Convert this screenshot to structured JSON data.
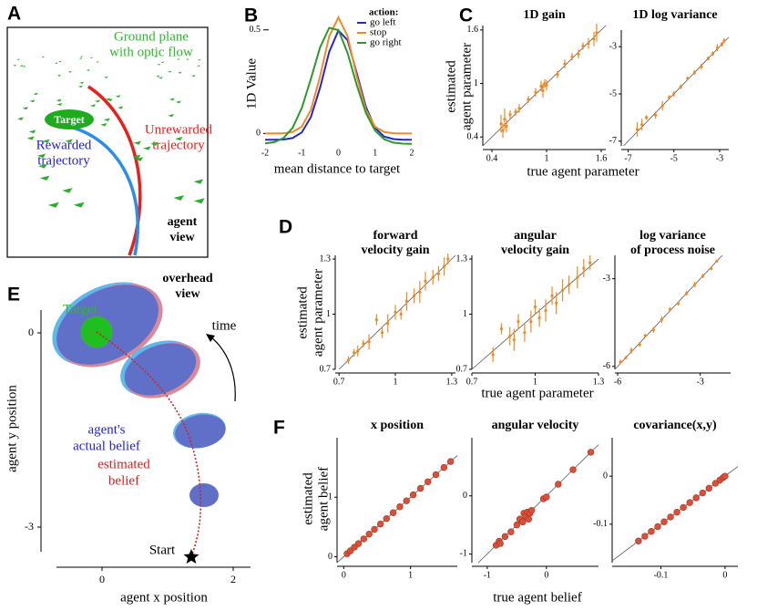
{
  "panel_labels": [
    "A",
    "B",
    "C",
    "D",
    "E",
    "F"
  ],
  "panel_a": {
    "ground": [
      "Ground plane",
      "with optic flow"
    ],
    "target": "Target",
    "rewarded": [
      "Rewarded",
      "trajectory"
    ],
    "unrewarded": [
      "Unrewarded",
      "trajectory"
    ],
    "view": [
      "agent",
      "view"
    ]
  },
  "panel_c": {
    "ylabel": [
      "estimated",
      "agent parameter"
    ],
    "xlabel": "true agent parameter"
  },
  "panel_d": {
    "ylabel": [
      "estimated",
      "agent parameter"
    ],
    "xlabel": "true agent parameter"
  },
  "panel_e": {
    "view": [
      "overhead",
      "view"
    ],
    "target": "Target",
    "time": "time",
    "actual": [
      "agent's",
      "actual belief"
    ],
    "estimated": [
      "estimated",
      "belief"
    ],
    "start": "Start",
    "xlabel": "agent x position",
    "ylabel": "agent y position",
    "xticks": [
      0,
      2
    ],
    "yticks": [
      0,
      -3
    ]
  },
  "panel_f": {
    "ylabel": [
      "estimated",
      "agent belief"
    ],
    "xlabel": "true agent belief"
  },
  "chart_data": [
    {
      "type": "line",
      "ylabel": "1D Value",
      "xlabel": "mean distance to target",
      "legend_title": "action:",
      "legend": "upper right",
      "x": [
        -2,
        -1.75,
        -1.5,
        -1.25,
        -1,
        -0.75,
        -0.5,
        -0.25,
        0,
        0.25,
        0.5,
        0.75,
        1,
        1.25,
        1.5,
        1.75,
        2
      ],
      "series": [
        {
          "name": "go left",
          "color": "#2525d0",
          "values": [
            -0.03,
            -0.03,
            -0.029,
            -0.022,
            0.005,
            0.079,
            0.221,
            0.394,
            0.497,
            0.45,
            0.291,
            0.128,
            0.027,
            -0.015,
            -0.027,
            -0.03,
            -0.03
          ]
        },
        {
          "name": "stop",
          "color": "#f08a24",
          "values": [
            0,
            0,
            0.001,
            0.007,
            0.033,
            0.114,
            0.276,
            0.469,
            0.56,
            0.469,
            0.276,
            0.114,
            0.033,
            0.007,
            0.001,
            0,
            0
          ]
        },
        {
          "name": "go right",
          "color": "#2a9a2a",
          "values": [
            -0.048,
            -0.042,
            -0.022,
            0.027,
            0.123,
            0.264,
            0.416,
            0.51,
            0.499,
            0.388,
            0.234,
            0.099,
            0.014,
            -0.028,
            -0.044,
            -0.049,
            -0.05
          ]
        }
      ],
      "xlim": [
        -2.1,
        2.1
      ],
      "ylim": [
        -0.06,
        0.6
      ],
      "xticks": [
        -2,
        -1,
        0,
        1,
        2
      ],
      "yticks": [
        0,
        0.5
      ]
    },
    {
      "type": "scatter",
      "title": [
        "1D gain"
      ],
      "color": "#f08a24",
      "x": [
        0.5,
        0.52,
        0.54,
        0.56,
        0.6,
        0.66,
        0.7,
        0.8,
        0.88,
        0.94,
        0.96,
        0.98,
        1.0,
        1.12,
        1.2,
        1.28,
        1.35,
        1.4,
        1.46,
        1.52,
        1.55
      ],
      "values": [
        0.55,
        0.47,
        0.6,
        0.52,
        0.65,
        0.68,
        0.72,
        0.82,
        0.9,
        0.97,
        0.92,
        1.0,
        0.98,
        1.1,
        1.22,
        1.3,
        1.33,
        1.42,
        1.45,
        1.5,
        1.57
      ],
      "errors": [
        0.1,
        0.08,
        0.12,
        0.07,
        0.05,
        0.04,
        0.05,
        0.04,
        0.05,
        0.06,
        0.08,
        0.05,
        0.06,
        0.04,
        0.05,
        0.04,
        0.05,
        0.04,
        0.06,
        0.08,
        0.1
      ],
      "xlim": [
        0.3,
        1.65
      ],
      "ylim": [
        0.3,
        1.65
      ],
      "xticks": [
        0.4,
        1,
        1.6
      ],
      "yticks": [
        0.4,
        1,
        1.6
      ]
    },
    {
      "type": "scatter",
      "title": [
        "1D log variance"
      ],
      "color": "#f08a24",
      "x": [
        -6.6,
        -6.4,
        -6.2,
        -5.8,
        -5.5,
        -5.2,
        -5.0,
        -4.7,
        -4.4,
        -4.1,
        -3.8,
        -3.5,
        -3.3,
        -3.1,
        -2.9,
        -2.8
      ],
      "values": [
        -6.5,
        -6.3,
        -6.0,
        -5.9,
        -5.5,
        -5.15,
        -5.0,
        -4.7,
        -4.35,
        -4.1,
        -3.85,
        -3.5,
        -3.3,
        -3.05,
        -2.9,
        -2.75
      ],
      "errors": [
        0.3,
        0.25,
        0.1,
        0.15,
        0.2,
        0.1,
        0.12,
        0.1,
        0.08,
        0.1,
        0.12,
        0.08,
        0.1,
        0.15,
        0.1,
        0.1
      ],
      "xlim": [
        -7.3,
        -2.6
      ],
      "ylim": [
        -7.2,
        -2.3
      ],
      "xticks": [
        -7,
        -5,
        -3
      ],
      "yticks": [
        -7,
        -5,
        -3
      ]
    },
    {
      "type": "scatter",
      "title": [
        "forward",
        "velocity gain"
      ],
      "color": "#f08a24",
      "x": [
        0.75,
        0.78,
        0.8,
        0.83,
        0.86,
        0.9,
        0.93,
        0.96,
        1.0,
        1.03,
        1.06,
        1.1,
        1.13,
        1.16,
        1.2,
        1.23,
        1.26,
        1.28
      ],
      "values": [
        0.75,
        0.79,
        0.8,
        0.84,
        0.85,
        0.97,
        0.9,
        0.95,
        1.01,
        1.0,
        1.07,
        1.1,
        1.12,
        1.18,
        1.2,
        1.22,
        1.26,
        1.3
      ],
      "errors": [
        0.02,
        0.02,
        0.03,
        0.02,
        0.04,
        0.03,
        0.03,
        0.05,
        0.04,
        0.03,
        0.05,
        0.04,
        0.06,
        0.05,
        0.04,
        0.04,
        0.05,
        0.03
      ],
      "xlim": [
        0.68,
        1.32
      ],
      "ylim": [
        0.7,
        1.32
      ],
      "xticks": [
        0.7,
        1,
        1.3
      ],
      "yticks": [
        0.7,
        1,
        1.3
      ]
    },
    {
      "type": "scatter",
      "title": [
        "angular",
        "velocity gain"
      ],
      "color": "#f08a24",
      "x": [
        0.8,
        0.84,
        0.88,
        0.9,
        0.92,
        0.95,
        0.98,
        1.0,
        1.02,
        1.05,
        1.08,
        1.1,
        1.13,
        1.16,
        1.2,
        1.23,
        1.26
      ],
      "values": [
        0.78,
        0.92,
        0.88,
        0.86,
        0.96,
        0.9,
        0.96,
        1.04,
        0.98,
        1.02,
        1.1,
        1.06,
        1.13,
        1.16,
        1.2,
        1.25,
        1.28
      ],
      "errors": [
        0.04,
        0.03,
        0.05,
        0.06,
        0.04,
        0.05,
        0.06,
        0.04,
        0.05,
        0.06,
        0.05,
        0.06,
        0.06,
        0.05,
        0.06,
        0.05,
        0.04
      ],
      "xlim": [
        0.7,
        1.3
      ],
      "ylim": [
        0.7,
        1.32
      ],
      "xticks": [
        0.7,
        1,
        1.3
      ],
      "yticks": [
        0.7,
        1,
        1.3
      ]
    },
    {
      "type": "scatter",
      "title": [
        "log variance",
        "of process noise"
      ],
      "color": "#f08a24",
      "x": [
        -5.9,
        -5.7,
        -5.5,
        -5.2,
        -5.0,
        -4.7,
        -4.4,
        -4.1,
        -3.8,
        -3.5,
        -3.2,
        -2.9,
        -2.6,
        -2.4
      ],
      "values": [
        -5.85,
        -5.7,
        -5.45,
        -5.25,
        -4.95,
        -4.75,
        -4.4,
        -4.05,
        -3.85,
        -3.5,
        -3.2,
        -2.9,
        -2.65,
        -2.4
      ],
      "errors": [
        0.08,
        0.06,
        0.1,
        0.08,
        0.06,
        0.1,
        0.12,
        0.08,
        0.06,
        0.08,
        0.1,
        0.08,
        0.06,
        0.05
      ],
      "xlim": [
        -6.1,
        -1.9
      ],
      "ylim": [
        -6.1,
        -2.2
      ],
      "xticks": [
        -6,
        -3
      ],
      "yticks": [
        -6,
        -3
      ]
    },
    {
      "type": "scatter",
      "title": [
        "x position"
      ],
      "color": "#d9503a",
      "x": [
        0.05,
        0.1,
        0.16,
        0.22,
        0.3,
        0.38,
        0.46,
        0.55,
        0.64,
        0.74,
        0.84,
        0.94,
        1.04,
        1.15,
        1.26,
        1.38,
        1.5,
        1.6
      ],
      "values": [
        0.05,
        0.1,
        0.16,
        0.22,
        0.3,
        0.38,
        0.46,
        0.55,
        0.64,
        0.74,
        0.84,
        0.94,
        1.04,
        1.15,
        1.26,
        1.38,
        1.5,
        1.6
      ],
      "xlim": [
        -0.1,
        1.7
      ],
      "ylim": [
        -0.1,
        2.0
      ],
      "xticks": [
        0,
        1
      ],
      "yticks": [
        0,
        1
      ]
    },
    {
      "type": "scatter",
      "title": [
        "angular velocity"
      ],
      "color": "#d9503a",
      "x": [
        -0.85,
        -0.8,
        -0.78,
        -0.7,
        -0.6,
        -0.5,
        -0.45,
        -0.4,
        -0.38,
        -0.35,
        -0.32,
        -0.3,
        -0.28,
        -0.25,
        -0.05,
        0,
        0.2,
        0.45,
        0.75
      ],
      "values": [
        -0.85,
        -0.78,
        -0.82,
        -0.7,
        -0.62,
        -0.5,
        -0.4,
        -0.45,
        -0.3,
        -0.35,
        -0.28,
        -0.4,
        -0.3,
        -0.25,
        -0.05,
        -0.02,
        0.2,
        0.45,
        0.75
      ],
      "xlim": [
        -1.26,
        0.88
      ],
      "ylim": [
        -1.15,
        1.0
      ],
      "xticks": [
        -1,
        0
      ],
      "yticks": [
        -1,
        0
      ]
    },
    {
      "type": "scatter",
      "title": [
        "covariance(x,y)"
      ],
      "color": "#d9503a",
      "x": [
        -0.135,
        -0.125,
        -0.115,
        -0.105,
        -0.095,
        -0.085,
        -0.075,
        -0.065,
        -0.055,
        -0.045,
        -0.035,
        -0.025,
        -0.015,
        -0.008,
        -0.003,
        0
      ],
      "values": [
        -0.135,
        -0.125,
        -0.115,
        -0.105,
        -0.095,
        -0.085,
        -0.075,
        -0.065,
        -0.055,
        -0.045,
        -0.035,
        -0.025,
        -0.015,
        -0.008,
        -0.003,
        0
      ],
      "xlim": [
        -0.176,
        0.02
      ],
      "ylim": [
        -0.18,
        0.08
      ],
      "xticks": [
        -0.1,
        0
      ],
      "yticks": [
        -0.1,
        0
      ]
    }
  ]
}
